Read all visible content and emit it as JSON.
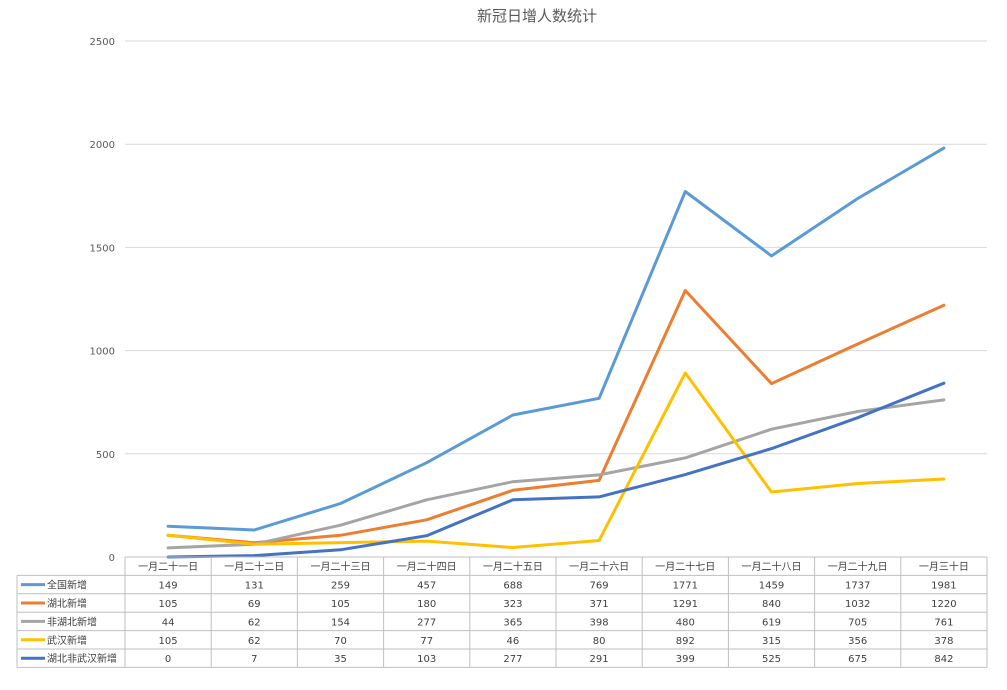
{
  "chart_data": {
    "type": "line",
    "title": "新冠日增人数统计",
    "xlabel": "",
    "ylabel": "",
    "ylim": [
      0,
      2500
    ],
    "yticks": [
      0,
      500,
      1000,
      1500,
      2000,
      2500
    ],
    "grid": true,
    "legend": "data-table",
    "categories": [
      "一月二十一日",
      "一月二十二日",
      "一月二十三日",
      "一月二十四日",
      "一月二十五日",
      "一月二十六日",
      "一月二十七日",
      "一月二十八日",
      "一月二十九日",
      "一月三十日"
    ],
    "series": [
      {
        "name": "全国新增",
        "color": "#5b9bd5",
        "values": [
          149,
          131,
          259,
          457,
          688,
          769,
          1771,
          1459,
          1737,
          1981
        ]
      },
      {
        "name": "湖北新增",
        "color": "#ed7d31",
        "values": [
          105,
          69,
          105,
          180,
          323,
          371,
          1291,
          840,
          1032,
          1220
        ]
      },
      {
        "name": "非湖北新增",
        "color": "#a5a5a5",
        "values": [
          44,
          62,
          154,
          277,
          365,
          398,
          480,
          619,
          705,
          761
        ]
      },
      {
        "name": "武汉新增",
        "color": "#ffc000",
        "values": [
          105,
          62,
          70,
          77,
          46,
          80,
          892,
          315,
          356,
          378
        ]
      },
      {
        "name": "湖北非武汉新增",
        "color": "#4472c4",
        "values": [
          0,
          7,
          35,
          103,
          277,
          291,
          399,
          525,
          675,
          842
        ]
      }
    ]
  }
}
